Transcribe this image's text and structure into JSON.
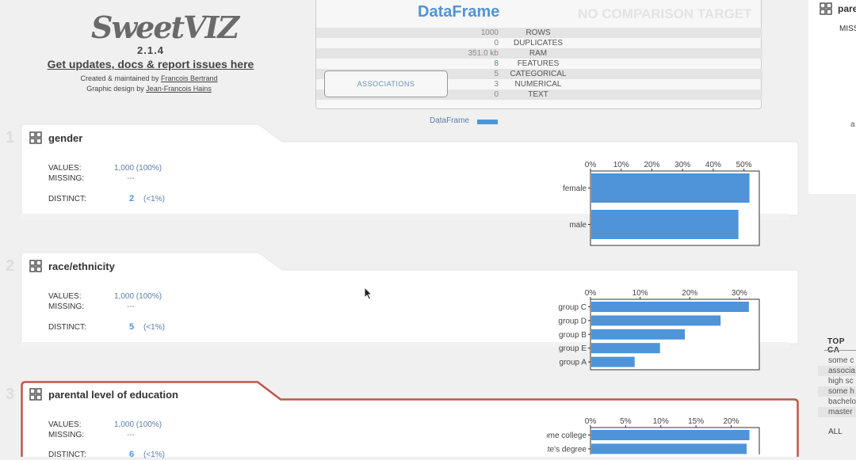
{
  "header": {
    "logo": "SweetVIZ",
    "version": "2.1.4",
    "updates_link": "Get updates, docs & report issues here",
    "created_prefix": "Created & maintained by ",
    "created_name": "Francois Bertrand",
    "design_prefix": "Graphic design by ",
    "design_name": "Jean-Francois Hains"
  },
  "summary": {
    "title": "DataFrame",
    "no_compare": "NO COMPARISON TARGET",
    "rows": [
      {
        "value": "1000",
        "label": "ROWS"
      },
      {
        "value": "0",
        "label": "DUPLICATES"
      },
      {
        "value": "351.0 kb",
        "label": "RAM"
      },
      {
        "value": "8",
        "label": "FEATURES"
      },
      {
        "value": "5",
        "label": "CATEGORICAL"
      },
      {
        "value": "3",
        "label": "NUMERICAL"
      },
      {
        "value": "0",
        "label": "TEXT"
      }
    ],
    "associations_button": "ASSOCIATIONS",
    "legend_label": "DataFrame"
  },
  "features": [
    {
      "index": "1",
      "title": "gender",
      "values_label": "VALUES:",
      "values": "1,000 (100%)",
      "missing_label": "MISSING:",
      "missing": "---",
      "distinct_label": "DISTINCT:",
      "distinct": "2",
      "distinct_pct": "(<1%)"
    },
    {
      "index": "2",
      "title": "race/ethnicity",
      "values_label": "VALUES:",
      "values": "1,000 (100%)",
      "missing_label": "MISSING:",
      "missing": "---",
      "distinct_label": "DISTINCT:",
      "distinct": "5",
      "distinct_pct": "(<1%)"
    },
    {
      "index": "3",
      "title": "parental level of education",
      "values_label": "VALUES:",
      "values": "1,000 (100%)",
      "missing_label": "MISSING:",
      "missing": "---",
      "distinct_label": "DISTINCT:",
      "distinct": "6",
      "distinct_pct": "(<1%)"
    }
  ],
  "chart_data": [
    {
      "type": "bar",
      "orientation": "horizontal",
      "categories": [
        "female",
        "male"
      ],
      "values": [
        51.8,
        48.2
      ],
      "x_ticks": [
        "0%",
        "10%",
        "20%",
        "30%",
        "40%",
        "50%"
      ],
      "xlim": [
        0,
        55
      ]
    },
    {
      "type": "bar",
      "orientation": "horizontal",
      "categories": [
        "group C",
        "group D",
        "group B",
        "group E",
        "group A"
      ],
      "values": [
        31.9,
        26.2,
        19.0,
        14.0,
        8.9
      ],
      "x_ticks": [
        "0%",
        "10%",
        "20%",
        "30%"
      ],
      "xlim": [
        0,
        34
      ]
    },
    {
      "type": "bar",
      "orientation": "horizontal",
      "categories": [
        "some college",
        "associate's degree"
      ],
      "values": [
        22.6,
        22.2
      ],
      "x_ticks": [
        "0%",
        "5%",
        "10%",
        "15%",
        "20%"
      ],
      "xlim": [
        0,
        24
      ]
    }
  ],
  "right_panel": {
    "title": "pare",
    "missing": "MISS",
    "a_label": "a",
    "top_categories_header": "TOP CA",
    "top_categories": [
      "some c",
      "associa",
      "high sc",
      "some h",
      "bachelo",
      "master"
    ],
    "all_label": "ALL"
  },
  "colors": {
    "bar": "#4f94d8",
    "selected_border": "#c0564b",
    "title_blue": "#4f94d8"
  }
}
